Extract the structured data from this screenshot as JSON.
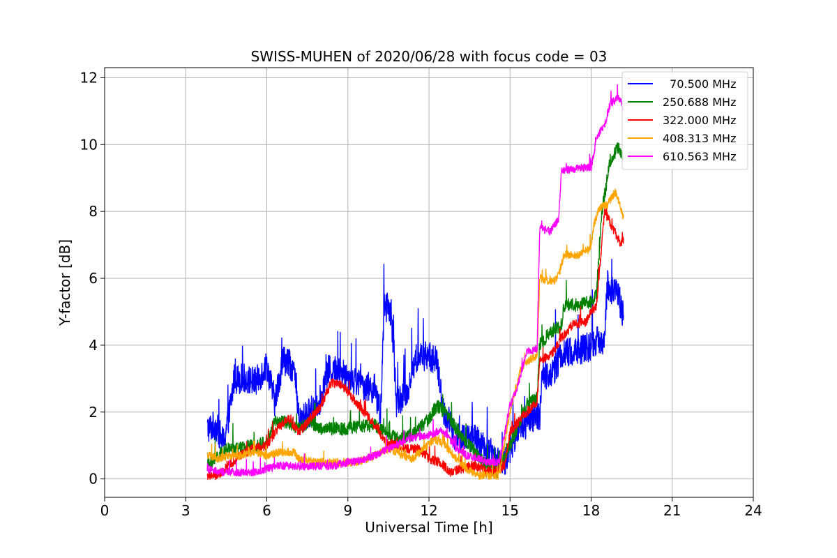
{
  "chart_data": {
    "type": "line",
    "title": "SWISS-MUHEN of 2020/06/28 with focus code = 03",
    "xlabel": "Universal Time [h]",
    "ylabel": "Y-factor [dB]",
    "xlim": [
      0,
      24
    ],
    "ylim": [
      -0.55,
      12.3
    ],
    "xticks": [
      "0",
      "3",
      "6",
      "9",
      "12",
      "15",
      "18",
      "21",
      "24"
    ],
    "yticks": [
      "0",
      "2",
      "4",
      "6",
      "8",
      "10",
      "12"
    ],
    "grid": true,
    "legend_position": "top-right",
    "series": [
      {
        "name": "  70.500 MHz",
        "color": "#0000ff",
        "noise": 0.45,
        "points": [
          [
            3.8,
            1.5
          ],
          [
            4.1,
            1.6
          ],
          [
            4.4,
            1.1
          ],
          [
            4.6,
            1.9
          ],
          [
            4.8,
            3.0
          ],
          [
            5.2,
            3.0
          ],
          [
            5.6,
            2.9
          ],
          [
            6.0,
            3.4
          ],
          [
            6.3,
            2.3
          ],
          [
            6.6,
            3.6
          ],
          [
            7.0,
            3.3
          ],
          [
            7.2,
            1.7
          ],
          [
            7.6,
            2.0
          ],
          [
            8.0,
            2.4
          ],
          [
            8.3,
            3.3
          ],
          [
            8.7,
            3.2
          ],
          [
            9.0,
            3.1
          ],
          [
            9.5,
            2.8
          ],
          [
            10.0,
            2.7
          ],
          [
            10.2,
            1.8
          ],
          [
            10.35,
            5.2
          ],
          [
            10.6,
            5.0
          ],
          [
            10.8,
            2.3
          ],
          [
            11.2,
            2.6
          ],
          [
            11.5,
            3.6
          ],
          [
            12.0,
            3.7
          ],
          [
            12.3,
            3.5
          ],
          [
            12.5,
            2.1
          ],
          [
            12.8,
            1.6
          ],
          [
            13.0,
            1.2
          ],
          [
            13.5,
            1.3
          ],
          [
            14.0,
            1.0
          ],
          [
            14.4,
            0.7
          ],
          [
            14.8,
            0.5
          ],
          [
            15.0,
            0.9
          ],
          [
            15.3,
            1.5
          ],
          [
            15.6,
            1.6
          ],
          [
            15.9,
            1.8
          ],
          [
            16.1,
            1.9
          ],
          [
            16.2,
            3.1
          ],
          [
            16.6,
            3.2
          ],
          [
            16.9,
            3.7
          ],
          [
            17.3,
            3.8
          ],
          [
            17.8,
            3.9
          ],
          [
            18.2,
            4.1
          ],
          [
            18.5,
            4.2
          ],
          [
            18.6,
            5.8
          ],
          [
            19.0,
            5.5
          ],
          [
            19.2,
            4.9
          ]
        ]
      },
      {
        "name": "250.688 MHz",
        "color": "#008000",
        "noise": 0.2,
        "points": [
          [
            3.8,
            0.4
          ],
          [
            4.2,
            0.7
          ],
          [
            4.6,
            0.9
          ],
          [
            5.0,
            0.9
          ],
          [
            5.5,
            1.0
          ],
          [
            6.0,
            1.1
          ],
          [
            6.3,
            1.7
          ],
          [
            6.8,
            1.7
          ],
          [
            7.2,
            1.5
          ],
          [
            7.6,
            1.7
          ],
          [
            8.0,
            1.5
          ],
          [
            8.5,
            1.5
          ],
          [
            9.0,
            1.5
          ],
          [
            9.5,
            1.6
          ],
          [
            10.0,
            1.6
          ],
          [
            10.5,
            1.3
          ],
          [
            11.0,
            1.2
          ],
          [
            11.5,
            1.4
          ],
          [
            12.0,
            1.8
          ],
          [
            12.3,
            2.2
          ],
          [
            12.7,
            1.9
          ],
          [
            13.0,
            1.5
          ],
          [
            13.5,
            1.0
          ],
          [
            14.0,
            0.5
          ],
          [
            14.5,
            0.2
          ],
          [
            15.0,
            1.0
          ],
          [
            15.3,
            1.6
          ],
          [
            15.6,
            2.2
          ],
          [
            16.0,
            2.4
          ],
          [
            16.1,
            4.0
          ],
          [
            16.5,
            4.4
          ],
          [
            16.9,
            4.6
          ],
          [
            17.0,
            5.2
          ],
          [
            17.5,
            5.2
          ],
          [
            18.0,
            5.3
          ],
          [
            18.2,
            5.5
          ],
          [
            18.4,
            8.0
          ],
          [
            18.7,
            9.5
          ],
          [
            19.0,
            9.9
          ],
          [
            19.2,
            9.6
          ]
        ]
      },
      {
        "name": "322.000 MHz",
        "color": "#ff0000",
        "noise": 0.14,
        "points": [
          [
            3.8,
            0.1
          ],
          [
            4.2,
            0.1
          ],
          [
            4.6,
            0.4
          ],
          [
            5.0,
            0.7
          ],
          [
            5.5,
            0.9
          ],
          [
            6.0,
            1.0
          ],
          [
            6.4,
            1.5
          ],
          [
            6.8,
            1.8
          ],
          [
            7.2,
            1.4
          ],
          [
            7.6,
            1.8
          ],
          [
            8.0,
            2.2
          ],
          [
            8.4,
            2.9
          ],
          [
            8.8,
            2.8
          ],
          [
            9.2,
            2.4
          ],
          [
            9.6,
            2.0
          ],
          [
            10.0,
            1.6
          ],
          [
            10.4,
            1.1
          ],
          [
            10.8,
            1.0
          ],
          [
            11.2,
            0.9
          ],
          [
            11.6,
            0.9
          ],
          [
            12.0,
            0.6
          ],
          [
            12.4,
            0.5
          ],
          [
            12.8,
            0.2
          ],
          [
            13.2,
            0.3
          ],
          [
            13.6,
            0.4
          ],
          [
            14.0,
            0.3
          ],
          [
            14.4,
            0.2
          ],
          [
            14.8,
            0.4
          ],
          [
            15.0,
            1.4
          ],
          [
            15.5,
            1.9
          ],
          [
            16.0,
            2.3
          ],
          [
            16.1,
            3.5
          ],
          [
            16.6,
            3.8
          ],
          [
            16.9,
            4.2
          ],
          [
            17.3,
            4.6
          ],
          [
            17.8,
            4.7
          ],
          [
            18.0,
            5.0
          ],
          [
            18.2,
            5.2
          ],
          [
            18.5,
            8.0
          ],
          [
            18.8,
            7.5
          ],
          [
            19.1,
            7.0
          ],
          [
            19.2,
            7.2
          ]
        ]
      },
      {
        "name": "408.313 MHz",
        "color": "#ffa500",
        "noise": 0.12,
        "points": [
          [
            3.8,
            0.7
          ],
          [
            4.2,
            0.6
          ],
          [
            4.6,
            0.7
          ],
          [
            5.0,
            0.7
          ],
          [
            5.5,
            0.8
          ],
          [
            6.0,
            0.7
          ],
          [
            6.5,
            0.8
          ],
          [
            7.0,
            0.8
          ],
          [
            7.2,
            0.6
          ],
          [
            7.8,
            0.5
          ],
          [
            8.5,
            0.5
          ],
          [
            9.2,
            0.5
          ],
          [
            9.8,
            0.6
          ],
          [
            10.2,
            0.8
          ],
          [
            10.6,
            0.9
          ],
          [
            11.0,
            0.7
          ],
          [
            11.4,
            0.6
          ],
          [
            11.8,
            0.9
          ],
          [
            12.2,
            1.2
          ],
          [
            12.6,
            1.0
          ],
          [
            13.0,
            0.6
          ],
          [
            13.4,
            0.3
          ],
          [
            13.8,
            0.1
          ],
          [
            14.2,
            0.1
          ],
          [
            14.6,
            0.1
          ],
          [
            15.0,
            2.0
          ],
          [
            15.4,
            3.3
          ],
          [
            15.8,
            3.6
          ],
          [
            16.0,
            3.7
          ],
          [
            16.1,
            6.0
          ],
          [
            16.6,
            5.9
          ],
          [
            16.8,
            6.1
          ],
          [
            17.0,
            6.7
          ],
          [
            17.5,
            6.7
          ],
          [
            18.0,
            6.9
          ],
          [
            18.1,
            7.6
          ],
          [
            18.3,
            8.1
          ],
          [
            18.6,
            8.2
          ],
          [
            18.9,
            8.6
          ],
          [
            19.2,
            7.8
          ]
        ]
      },
      {
        "name": "610.563 MHz",
        "color": "#ff00ff",
        "noise": 0.12,
        "points": [
          [
            3.8,
            0.3
          ],
          [
            4.2,
            0.2
          ],
          [
            4.6,
            0.2
          ],
          [
            5.0,
            0.2
          ],
          [
            5.5,
            0.2
          ],
          [
            6.0,
            0.3
          ],
          [
            6.5,
            0.4
          ],
          [
            7.0,
            0.4
          ],
          [
            7.5,
            0.35
          ],
          [
            8.0,
            0.4
          ],
          [
            8.5,
            0.4
          ],
          [
            9.0,
            0.5
          ],
          [
            9.5,
            0.55
          ],
          [
            10.0,
            0.7
          ],
          [
            10.5,
            0.9
          ],
          [
            11.0,
            1.1
          ],
          [
            11.5,
            1.25
          ],
          [
            12.0,
            1.3
          ],
          [
            12.4,
            1.45
          ],
          [
            12.7,
            1.3
          ],
          [
            13.0,
            0.9
          ],
          [
            13.4,
            0.7
          ],
          [
            13.8,
            0.6
          ],
          [
            14.2,
            0.5
          ],
          [
            14.6,
            0.5
          ],
          [
            15.0,
            2.2
          ],
          [
            15.3,
            2.8
          ],
          [
            15.6,
            3.8
          ],
          [
            16.0,
            3.9
          ],
          [
            16.1,
            7.5
          ],
          [
            16.5,
            7.4
          ],
          [
            16.8,
            7.8
          ],
          [
            16.9,
            9.2
          ],
          [
            17.5,
            9.3
          ],
          [
            18.0,
            9.3
          ],
          [
            18.2,
            10.2
          ],
          [
            18.5,
            10.6
          ],
          [
            18.7,
            11.2
          ],
          [
            19.0,
            11.4
          ],
          [
            19.2,
            11.1
          ]
        ]
      }
    ]
  }
}
